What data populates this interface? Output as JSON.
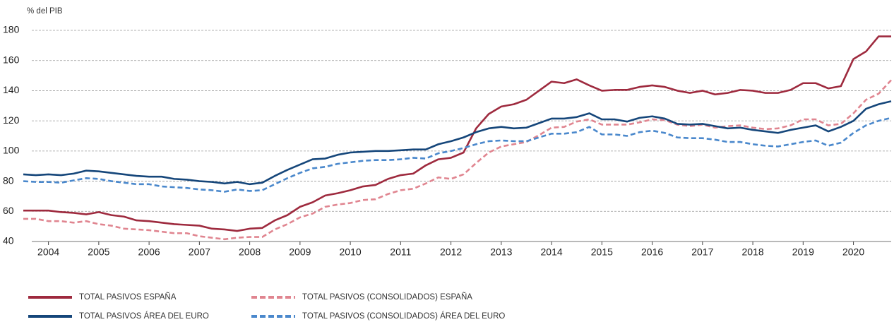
{
  "chart_data": {
    "type": "line",
    "y_label": "% del PIB",
    "x": [
      2003.5,
      2003.75,
      2004,
      2004.25,
      2004.5,
      2004.75,
      2005,
      2005.25,
      2005.5,
      2005.75,
      2006,
      2006.25,
      2006.5,
      2006.75,
      2007,
      2007.25,
      2007.5,
      2007.75,
      2008,
      2008.25,
      2008.5,
      2008.75,
      2009,
      2009.25,
      2009.5,
      2009.75,
      2010,
      2010.25,
      2010.5,
      2010.75,
      2011,
      2011.25,
      2011.5,
      2011.75,
      2012,
      2012.25,
      2012.5,
      2012.75,
      2013,
      2013.25,
      2013.5,
      2013.75,
      2014,
      2014.25,
      2014.5,
      2014.75,
      2015,
      2015.25,
      2015.5,
      2015.75,
      2016,
      2016.25,
      2016.5,
      2016.75,
      2017,
      2017.25,
      2017.5,
      2017.75,
      2018,
      2018.25,
      2018.5,
      2018.75,
      2019,
      2019.25,
      2019.5,
      2019.75,
      2020,
      2020.25,
      2020.5,
      2020.75
    ],
    "series": [
      {
        "name": "TOTAL PASIVOS ESPAÑA",
        "color": "#9e2a3e",
        "dashed": false,
        "values": [
          60.5,
          60.5,
          60.5,
          59.5,
          59,
          58,
          59.5,
          57.5,
          56.5,
          54,
          53.5,
          52.5,
          51.5,
          51,
          50.5,
          48.5,
          48,
          47,
          48.5,
          49,
          54,
          57.5,
          63,
          66,
          70.5,
          72,
          74,
          76.5,
          77.5,
          81.5,
          84,
          85,
          90.5,
          94.5,
          95.5,
          99,
          115,
          124.5,
          129.5,
          131,
          134,
          140,
          146,
          145,
          147.5,
          143.5,
          140,
          140.5,
          140.5,
          142.5,
          143.5,
          142.5,
          140,
          138.5,
          140,
          137.5,
          138.5,
          140.5,
          140,
          138.5,
          138.5,
          140.5,
          145,
          145,
          141.5,
          143,
          161,
          166,
          176,
          176
        ]
      },
      {
        "name": "TOTAL PASIVOS (CONSOLIDADOS) ESPAÑA",
        "color": "#e08590",
        "dashed": true,
        "values": [
          55,
          55,
          53.5,
          53.5,
          52.5,
          53.5,
          51.5,
          50.5,
          48.5,
          48,
          47.5,
          46.5,
          45.5,
          45.5,
          43.5,
          42.5,
          41.5,
          42.5,
          43,
          43,
          48,
          51.5,
          56,
          58.5,
          63,
          64.5,
          65.5,
          67.5,
          68,
          71.5,
          74,
          75,
          78.5,
          82.5,
          81.5,
          84.5,
          92,
          99,
          103,
          104.5,
          106,
          110.5,
          115.5,
          116,
          119.5,
          121,
          117.5,
          117.5,
          117.5,
          119,
          121,
          120.5,
          117.5,
          116.5,
          117.5,
          115.5,
          116.5,
          117,
          115.5,
          114.5,
          115,
          117,
          121,
          121,
          117,
          118,
          125,
          134,
          138,
          147
        ]
      },
      {
        "name": "TOTAL PASIVOS ÁREA DEL EURO",
        "color": "#15467a",
        "dashed": false,
        "values": [
          84.5,
          84,
          84.5,
          84,
          85,
          87,
          86.5,
          85.5,
          84.5,
          83.5,
          83,
          83,
          81.5,
          81,
          80,
          79.5,
          78.5,
          79.5,
          78,
          79,
          83.5,
          87.5,
          91,
          94.5,
          95,
          97.5,
          99,
          99.5,
          100,
          100,
          100.5,
          101,
          101,
          104.5,
          106.5,
          109,
          112.5,
          115,
          116,
          115,
          115.5,
          118.5,
          121.5,
          121.5,
          122.5,
          125,
          121,
          121,
          119.5,
          122,
          123,
          121.5,
          118,
          117.5,
          118,
          116.5,
          115,
          115.5,
          114,
          113,
          112,
          114,
          115.5,
          117,
          113,
          116,
          120,
          128,
          131,
          133
        ]
      },
      {
        "name": "TOTAL PASIVOS (CONSOLIDADOS) ÁREA DEL EURO",
        "color": "#4a88cc",
        "dashed": true,
        "values": [
          80,
          79.5,
          79.5,
          79,
          80.5,
          82,
          81.5,
          80,
          79,
          78,
          78,
          76.5,
          76,
          75.5,
          74.5,
          74,
          73,
          74.5,
          73.5,
          74,
          78,
          82,
          85.5,
          88.5,
          89.5,
          91.5,
          92.5,
          93.5,
          94,
          94,
          94.5,
          95.5,
          95,
          98.5,
          100,
          102,
          104.5,
          106.5,
          107,
          106.5,
          106.5,
          109,
          111.5,
          111.5,
          112.5,
          116,
          111,
          111,
          110,
          112.5,
          113.5,
          112,
          109,
          108.5,
          108.5,
          107.5,
          106,
          106,
          104.5,
          103.5,
          103,
          104.5,
          106,
          107,
          103.5,
          105.5,
          112,
          117,
          120,
          122
        ]
      }
    ],
    "xlim": [
      2003.5,
      2020.75
    ],
    "xticks": [
      2004,
      2005,
      2006,
      2007,
      2008,
      2009,
      2010,
      2011,
      2012,
      2013,
      2014,
      2015,
      2016,
      2017,
      2018,
      2019,
      2020
    ],
    "ylim": [
      40,
      180
    ],
    "yticks": [
      40,
      60,
      80,
      100,
      120,
      140,
      160,
      180
    ],
    "grid": true
  }
}
